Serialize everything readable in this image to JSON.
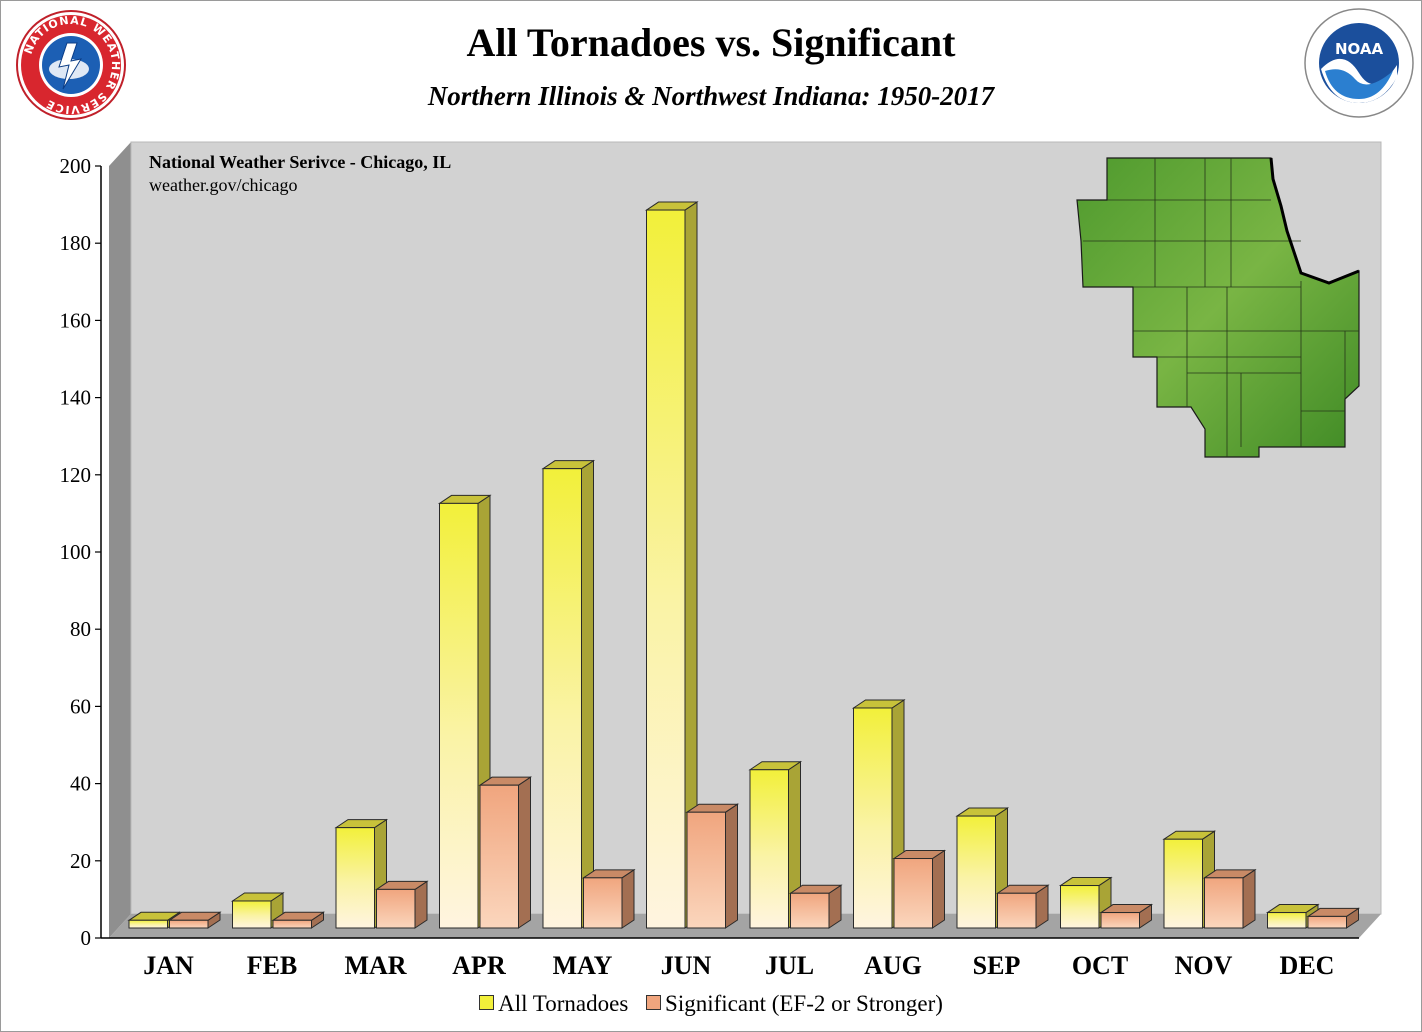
{
  "header": {
    "title": "All Tornadoes vs. Significant",
    "subtitle": "Northern Illinois & Northwest Indiana:  1950-2017"
  },
  "logos": {
    "left": {
      "icon": "nws-logo",
      "text": "NATIONAL WEATHER SERVICE"
    },
    "right": {
      "icon": "noaa-logo",
      "text": "NOAA"
    }
  },
  "annotation": {
    "line1": "National Weather Serivce - Chicago, IL",
    "line2": "weather.gov/chicago"
  },
  "inset_map": {
    "icon": "region-map-icon"
  },
  "legend": {
    "items": [
      {
        "label": "All Tornadoes",
        "color": "#f2f03a"
      },
      {
        "label": "Significant (EF-2 or Stronger)",
        "color": "#f0a57e"
      }
    ]
  },
  "chart_data": {
    "type": "bar",
    "title": "All Tornadoes vs. Significant",
    "subtitle": "Northern Illinois & Northwest Indiana:  1950-2017",
    "categories": [
      "JAN",
      "FEB",
      "MAR",
      "APR",
      "MAY",
      "JUN",
      "JUL",
      "AUG",
      "SEP",
      "OCT",
      "NOV",
      "DEC"
    ],
    "series": [
      {
        "name": "All Tornadoes",
        "values": [
          2,
          7,
          26,
          110,
          119,
          186,
          41,
          57,
          29,
          11,
          23,
          4
        ],
        "color": "#f2f03a"
      },
      {
        "name": "Significant (EF-2 or Stronger)",
        "values": [
          2,
          2,
          10,
          37,
          13,
          30,
          9,
          18,
          9,
          4,
          13,
          3
        ],
        "color": "#f0a57e"
      }
    ],
    "ylim": [
      0,
      200
    ],
    "yticks": [
      0,
      20,
      40,
      60,
      80,
      100,
      120,
      140,
      160,
      180,
      200
    ],
    "legend_position": "bottom",
    "grid": false
  }
}
